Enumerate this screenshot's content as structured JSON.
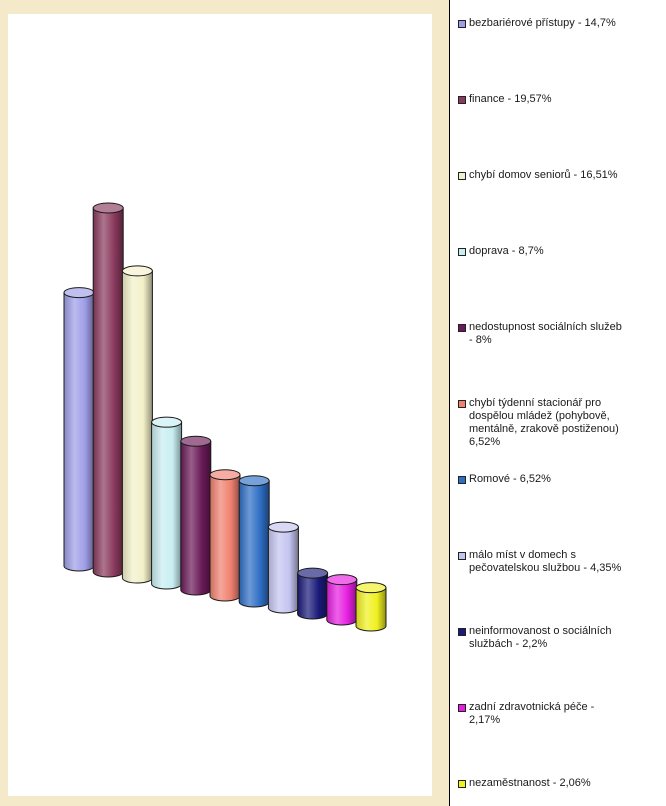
{
  "chart_data": {
    "type": "bar",
    "style": "3d-cylinder",
    "legend_position": "right",
    "grid": false,
    "categories": [
      "bezbariérové přístupy",
      "finance",
      "chybí domov seniorů",
      "doprava",
      "nedostupnost sociálních služeb",
      "chybí týdenní stacionář pro dospělou mládež (pohybově, mentálně, zrakově postiženou)",
      "Romové",
      "málo míst v domech s pečovatelskou službou",
      "neinformovanost o sociálních službách",
      "zadní zdravotnická péče",
      "nezaměstnanost"
    ],
    "values": [
      14.7,
      19.57,
      16.51,
      8.7,
      8,
      6.52,
      6.52,
      4.35,
      2.2,
      2.17,
      2.06
    ],
    "colors": [
      "#9e9ee8",
      "#8a3a5e",
      "#f2f0c8",
      "#c8eef2",
      "#6a1a58",
      "#f08070",
      "#2e6ec4",
      "#c4c4f0",
      "#1a1a7a",
      "#e61ee0",
      "#f0f020"
    ],
    "legend": [
      "bezbariérové přístupy - 14,7%",
      "finance - 19,57%",
      "chybí domov seniorů - 16,51%",
      "doprava - 8,7%",
      "nedostupnost sociálních služeb\n- 8%",
      "chybí týdenní stacionář pro\ndospělou mládež (pohybově,\nmentálně, zrakově postiženou)\n6,52%",
      "Romové - 6,52%",
      "málo míst v domech s\npečovatelskou službou - 4,35%",
      "neinformovanost o sociálních\nslužbách - 2,2%",
      "zadní zdravotnická péče -\n2,17%",
      "nezaměstnanost - 2,06%"
    ]
  }
}
